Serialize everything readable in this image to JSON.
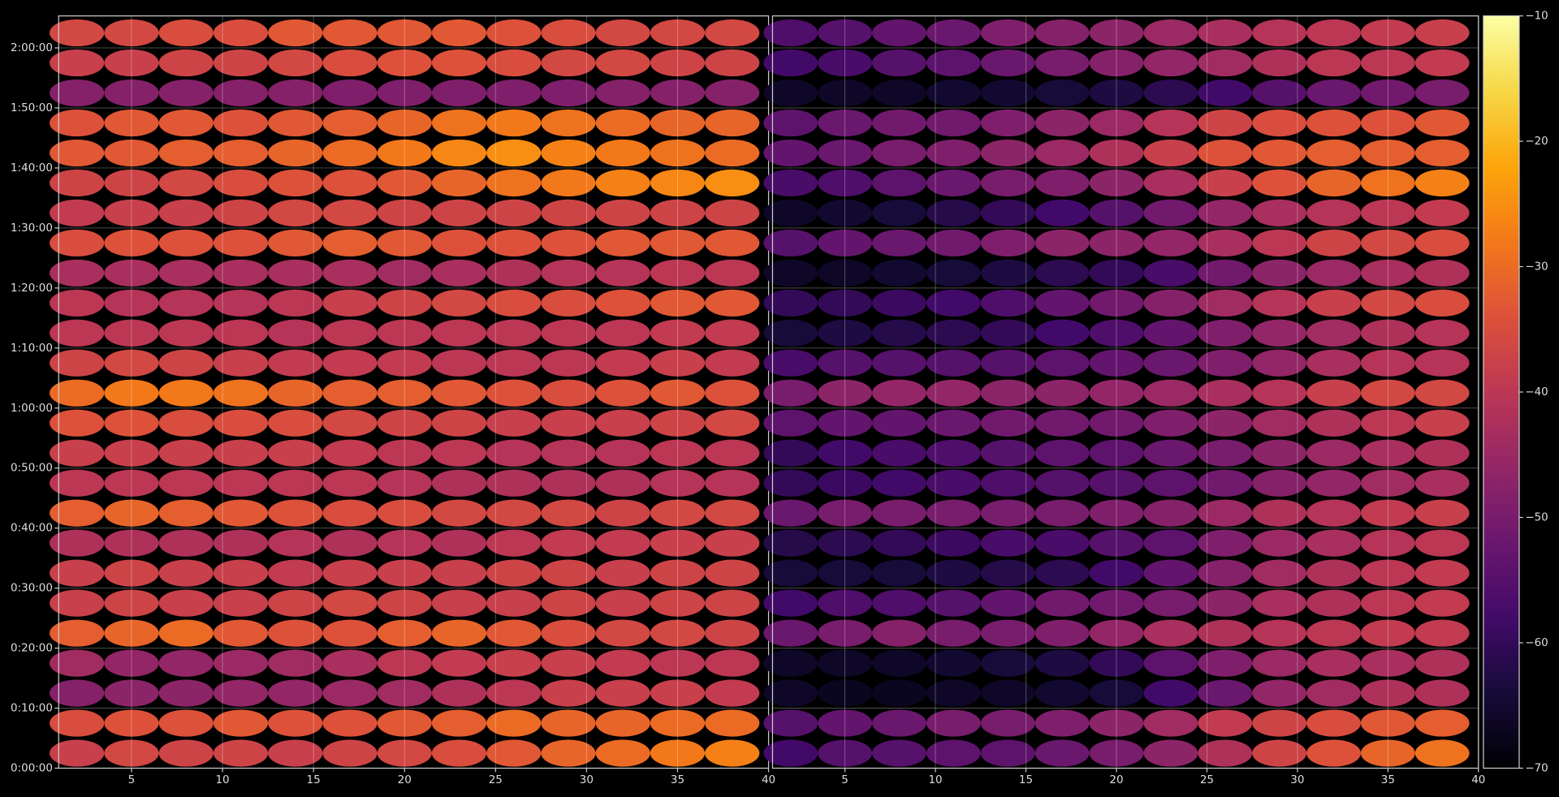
{
  "chart_data": [
    {
      "type": "heatmap",
      "colormap": "inferno",
      "grid": true,
      "x": [
        2,
        5,
        8,
        11,
        14,
        17,
        20,
        23,
        26,
        29,
        32,
        35,
        38
      ],
      "y": [
        150,
        450,
        750,
        1050,
        1350,
        1650,
        1950,
        2250,
        2550,
        2850,
        3150,
        3450,
        3750,
        4050,
        4350,
        4650,
        4950,
        5250,
        5550,
        5850,
        6150,
        6450,
        6750,
        7050,
        7350
      ],
      "xlim": [
        1,
        40
      ],
      "xticks": [
        5,
        10,
        15,
        20,
        25,
        30,
        35,
        40
      ],
      "ylim": [
        0,
        7520
      ],
      "yticks": [
        {
          "value": 0,
          "label": "0:00:00"
        },
        {
          "value": 600,
          "label": "0:10:00"
        },
        {
          "value": 1200,
          "label": "0:20:00"
        },
        {
          "value": 1800,
          "label": "0:30:00"
        },
        {
          "value": 2400,
          "label": "0:40:00"
        },
        {
          "value": 3000,
          "label": "0:50:00"
        },
        {
          "value": 3600,
          "label": "1:00:00"
        },
        {
          "value": 4200,
          "label": "1:10:00"
        },
        {
          "value": 4800,
          "label": "1:20:00"
        },
        {
          "value": 5400,
          "label": "1:30:00"
        },
        {
          "value": 6000,
          "label": "1:40:00"
        },
        {
          "value": 6600,
          "label": "1:50:00"
        },
        {
          "value": 7200,
          "label": "2:00:00"
        }
      ],
      "zlim": [
        -70,
        -10
      ],
      "zticks": [
        {
          "value": -10,
          "label": "−10"
        },
        {
          "value": -20,
          "label": "−20"
        },
        {
          "value": -30,
          "label": "−30"
        },
        {
          "value": -40,
          "label": "−40"
        },
        {
          "value": -50,
          "label": "−50"
        },
        {
          "value": -60,
          "label": "−60"
        },
        {
          "value": -70,
          "label": "−70"
        }
      ],
      "values": [
        [
          -38,
          -36,
          -37,
          -37,
          -38,
          -37,
          -36,
          -35,
          -33,
          -31,
          -30,
          -28,
          -27
        ],
        [
          -35,
          -34,
          -34,
          -33,
          -34,
          -34,
          -33,
          -32,
          -30,
          -31,
          -31,
          -30,
          -30
        ],
        [
          -48,
          -47,
          -47,
          -46,
          -46,
          -45,
          -44,
          -42,
          -40,
          -38,
          -38,
          -38,
          -39
        ],
        [
          -44,
          -46,
          -46,
          -45,
          -44,
          -43,
          -40,
          -39,
          -38,
          -38,
          -39,
          -40,
          -40
        ],
        [
          -32,
          -31,
          -30,
          -33,
          -34,
          -34,
          -32,
          -31,
          -33,
          -35,
          -36,
          -36,
          -37
        ],
        [
          -38,
          -37,
          -38,
          -38,
          -37,
          -36,
          -37,
          -38,
          -38,
          -37,
          -38,
          -37,
          -37
        ],
        [
          -38,
          -37,
          -38,
          -38,
          -39,
          -38,
          -38,
          -38,
          -37,
          -37,
          -38,
          -37,
          -37
        ],
        [
          -42,
          -42,
          -42,
          -42,
          -41,
          -42,
          -41,
          -42,
          -40,
          -39,
          -39,
          -38,
          -38
        ],
        [
          -32,
          -31,
          -32,
          -33,
          -34,
          -35,
          -35,
          -36,
          -36,
          -36,
          -37,
          -36,
          -36
        ],
        [
          -40,
          -40,
          -40,
          -40,
          -40,
          -40,
          -41,
          -42,
          -42,
          -42,
          -42,
          -41,
          -41
        ],
        [
          -38,
          -38,
          -38,
          -38,
          -38,
          -39,
          -40,
          -40,
          -41,
          -41,
          -41,
          -40,
          -40
        ],
        [
          -34,
          -34,
          -35,
          -35,
          -35,
          -36,
          -37,
          -37,
          -38,
          -38,
          -38,
          -37,
          -36
        ],
        [
          -30,
          -28,
          -28,
          -29,
          -31,
          -32,
          -32,
          -33,
          -34,
          -35,
          -34,
          -33,
          -34
        ],
        [
          -37,
          -36,
          -37,
          -38,
          -39,
          -39,
          -39,
          -40,
          -40,
          -40,
          -39,
          -38,
          -39
        ],
        [
          -40,
          -40,
          -40,
          -40,
          -41,
          -40,
          -40,
          -40,
          -40,
          -40,
          -40,
          -39,
          -39
        ],
        [
          -40,
          -41,
          -41,
          -41,
          -40,
          -38,
          -37,
          -36,
          -35,
          -35,
          -34,
          -33,
          -33
        ],
        [
          -43,
          -43,
          -43,
          -43,
          -43,
          -43,
          -44,
          -43,
          -42,
          -41,
          -41,
          -40,
          -40
        ],
        [
          -35,
          -34,
          -34,
          -34,
          -33,
          -32,
          -33,
          -34,
          -34,
          -34,
          -33,
          -33,
          -33
        ],
        [
          -39,
          -38,
          -38,
          -37,
          -36,
          -36,
          -37,
          -37,
          -37,
          -37,
          -37,
          -37,
          -37
        ],
        [
          -37,
          -37,
          -36,
          -35,
          -34,
          -34,
          -33,
          -31,
          -29,
          -28,
          -27,
          -26,
          -25
        ],
        [
          -33,
          -33,
          -32,
          -32,
          -31,
          -30,
          -28,
          -26,
          -25,
          -27,
          -28,
          -29,
          -30
        ],
        [
          -34,
          -33,
          -33,
          -34,
          -33,
          -32,
          -31,
          -29,
          -28,
          -29,
          -30,
          -31,
          -31
        ],
        [
          -48,
          -48,
          -48,
          -48,
          -48,
          -49,
          -49,
          -49,
          -49,
          -49,
          -48,
          -48,
          -48
        ],
        [
          -38,
          -38,
          -37,
          -37,
          -36,
          -35,
          -34,
          -34,
          -35,
          -36,
          -36,
          -37,
          -37
        ],
        [
          -36,
          -36,
          -35,
          -35,
          -33,
          -33,
          -33,
          -33,
          -34,
          -35,
          -36,
          -36,
          -36
        ]
      ]
    },
    {
      "type": "heatmap",
      "colormap": "inferno",
      "grid": true,
      "x": [
        2,
        5,
        8,
        11,
        14,
        17,
        20,
        23,
        26,
        29,
        32,
        35,
        38
      ],
      "y": [
        150,
        450,
        750,
        1050,
        1350,
        1650,
        1950,
        2250,
        2550,
        2850,
        3150,
        3450,
        3750,
        4050,
        4350,
        4650,
        4950,
        5250,
        5550,
        5850,
        6150,
        6450,
        6750,
        7050,
        7350
      ],
      "xlim": [
        1,
        40
      ],
      "xticks": [
        5,
        10,
        15,
        20,
        25,
        30,
        35,
        40
      ],
      "ylim": [
        0,
        7520
      ],
      "yticks": [
        0,
        600,
        1200,
        1800,
        2400,
        3000,
        3600,
        4200,
        4800,
        5400,
        6000,
        6600,
        7200
      ],
      "zlim": [
        -70,
        -10
      ],
      "values": [
        [
          -58,
          -55,
          -55,
          -54,
          -54,
          -52,
          -50,
          -47,
          -42,
          -37,
          -34,
          -31,
          -29
        ],
        [
          -55,
          -53,
          -52,
          -50,
          -50,
          -49,
          -47,
          -44,
          -39,
          -37,
          -35,
          -33,
          -32
        ],
        [
          -66,
          -67,
          -67,
          -66,
          -66,
          -65,
          -64,
          -58,
          -52,
          -46,
          -44,
          -42,
          -42
        ],
        [
          -66,
          -66,
          -66,
          -65,
          -64,
          -63,
          -60,
          -54,
          -49,
          -45,
          -43,
          -43,
          -42
        ],
        [
          -52,
          -50,
          -48,
          -50,
          -50,
          -49,
          -46,
          -43,
          -42,
          -41,
          -40,
          -39,
          -39
        ],
        [
          -58,
          -56,
          -56,
          -55,
          -53,
          -51,
          -51,
          -50,
          -47,
          -43,
          -42,
          -40,
          -39
        ],
        [
          -64,
          -64,
          -64,
          -63,
          -62,
          -61,
          -58,
          -53,
          -48,
          -44,
          -42,
          -40,
          -39
        ],
        [
          -62,
          -61,
          -60,
          -59,
          -57,
          -57,
          -55,
          -54,
          -49,
          -45,
          -43,
          -41,
          -40
        ],
        [
          -52,
          -50,
          -50,
          -50,
          -50,
          -50,
          -49,
          -48,
          -45,
          -42,
          -41,
          -39,
          -38
        ],
        [
          -60,
          -59,
          -58,
          -57,
          -56,
          -55,
          -55,
          -54,
          -51,
          -48,
          -46,
          -44,
          -43
        ],
        [
          -60,
          -58,
          -57,
          -56,
          -55,
          -54,
          -54,
          -52,
          -50,
          -47,
          -45,
          -43,
          -42
        ],
        [
          -54,
          -53,
          -53,
          -52,
          -51,
          -51,
          -51,
          -49,
          -47,
          -44,
          -42,
          -40,
          -38
        ],
        [
          -50,
          -47,
          -46,
          -46,
          -47,
          -47,
          -46,
          -45,
          -43,
          -41,
          -38,
          -36,
          -36
        ],
        [
          -57,
          -55,
          -55,
          -55,
          -55,
          -54,
          -53,
          -52,
          -49,
          -46,
          -43,
          -41,
          -41
        ],
        [
          -64,
          -63,
          -62,
          -61,
          -60,
          -58,
          -56,
          -53,
          -49,
          -46,
          -44,
          -42,
          -41
        ],
        [
          -60,
          -60,
          -59,
          -58,
          -56,
          -53,
          -51,
          -48,
          -44,
          -41,
          -38,
          -36,
          -35
        ],
        [
          -66,
          -66,
          -65,
          -64,
          -63,
          -61,
          -60,
          -57,
          -51,
          -47,
          -45,
          -43,
          -42
        ],
        [
          -55,
          -53,
          -52,
          -51,
          -49,
          -47,
          -47,
          -46,
          -43,
          -40,
          -37,
          -36,
          -35
        ],
        [
          -66,
          -65,
          -64,
          -62,
          -60,
          -58,
          -55,
          -51,
          -46,
          -43,
          -41,
          -40,
          -39
        ],
        [
          -57,
          -56,
          -54,
          -52,
          -50,
          -49,
          -47,
          -43,
          -38,
          -34,
          -31,
          -29,
          -27
        ],
        [
          -53,
          -52,
          -50,
          -49,
          -47,
          -45,
          -42,
          -38,
          -34,
          -33,
          -32,
          -32,
          -32
        ],
        [
          -54,
          -52,
          -51,
          -51,
          -49,
          -47,
          -45,
          -41,
          -37,
          -35,
          -34,
          -34,
          -33
        ],
        [
          -66,
          -66,
          -66,
          -65,
          -65,
          -64,
          -63,
          -61,
          -58,
          -55,
          -52,
          -51,
          -50
        ],
        [
          -58,
          -57,
          -55,
          -54,
          -52,
          -50,
          -48,
          -46,
          -44,
          -42,
          -40,
          -40,
          -39
        ],
        [
          -56,
          -55,
          -53,
          -52,
          -49,
          -48,
          -47,
          -45,
          -43,
          -41,
          -40,
          -39,
          -38
        ]
      ]
    }
  ]
}
